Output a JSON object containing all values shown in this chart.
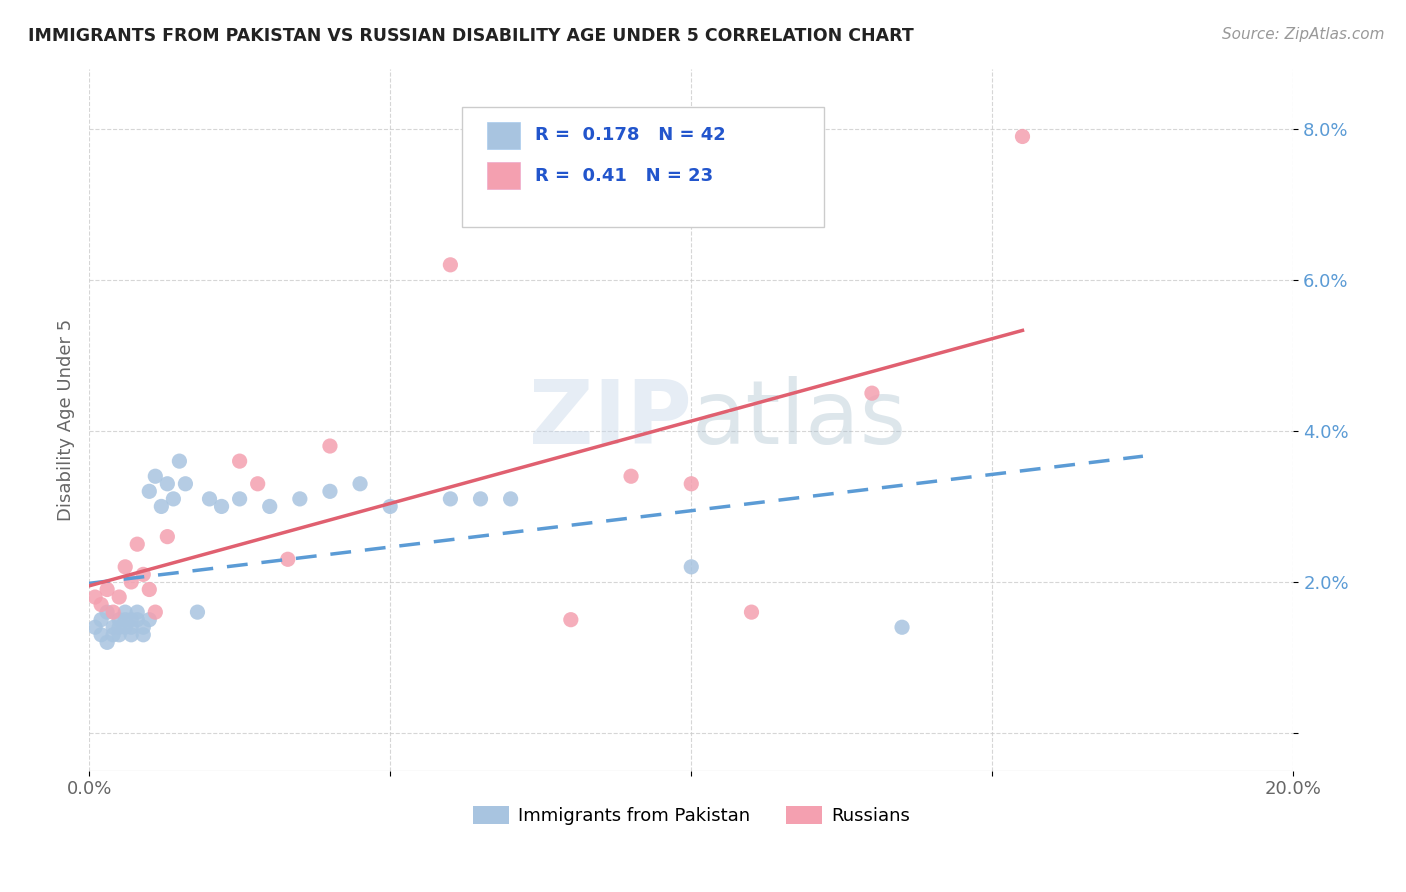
{
  "title": "IMMIGRANTS FROM PAKISTAN VS RUSSIAN DISABILITY AGE UNDER 5 CORRELATION CHART",
  "source": "Source: ZipAtlas.com",
  "ylabel": "Disability Age Under 5",
  "xlim": [
    0.0,
    0.2
  ],
  "ylim": [
    -0.005,
    0.088
  ],
  "xticks": [
    0.0,
    0.05,
    0.1,
    0.15,
    0.2
  ],
  "xticklabels": [
    "0.0%",
    "",
    "",
    "",
    "20.0%"
  ],
  "yticks": [
    0.0,
    0.02,
    0.04,
    0.06,
    0.08
  ],
  "yticklabels": [
    "",
    "2.0%",
    "4.0%",
    "6.0%",
    "8.0%"
  ],
  "pakistan_color": "#a8c4e0",
  "russian_color": "#f4a0b0",
  "R_pakistan": 0.178,
  "N_pakistan": 42,
  "R_russian": 0.41,
  "N_russian": 23,
  "legend_label_pakistan": "Immigrants from Pakistan",
  "legend_label_russian": "Russians",
  "pakistan_x": [
    0.001,
    0.002,
    0.002,
    0.003,
    0.003,
    0.004,
    0.004,
    0.005,
    0.005,
    0.005,
    0.006,
    0.006,
    0.006,
    0.007,
    0.007,
    0.007,
    0.008,
    0.008,
    0.009,
    0.009,
    0.01,
    0.01,
    0.011,
    0.012,
    0.013,
    0.014,
    0.015,
    0.016,
    0.018,
    0.02,
    0.022,
    0.025,
    0.03,
    0.035,
    0.04,
    0.045,
    0.05,
    0.06,
    0.065,
    0.07,
    0.1,
    0.135
  ],
  "pakistan_y": [
    0.014,
    0.013,
    0.015,
    0.012,
    0.016,
    0.014,
    0.013,
    0.015,
    0.014,
    0.013,
    0.015,
    0.014,
    0.016,
    0.013,
    0.015,
    0.014,
    0.016,
    0.015,
    0.014,
    0.013,
    0.032,
    0.015,
    0.034,
    0.03,
    0.033,
    0.031,
    0.036,
    0.033,
    0.016,
    0.031,
    0.03,
    0.031,
    0.03,
    0.031,
    0.032,
    0.033,
    0.03,
    0.031,
    0.031,
    0.031,
    0.022,
    0.014
  ],
  "russian_x": [
    0.001,
    0.002,
    0.003,
    0.004,
    0.005,
    0.006,
    0.007,
    0.008,
    0.009,
    0.01,
    0.011,
    0.013,
    0.025,
    0.028,
    0.033,
    0.04,
    0.06,
    0.08,
    0.09,
    0.1,
    0.11,
    0.13,
    0.155
  ],
  "russian_y": [
    0.018,
    0.017,
    0.019,
    0.016,
    0.018,
    0.022,
    0.02,
    0.025,
    0.021,
    0.019,
    0.016,
    0.026,
    0.036,
    0.033,
    0.023,
    0.038,
    0.062,
    0.015,
    0.034,
    0.033,
    0.016,
    0.045,
    0.079
  ],
  "pak_line_x0": 0.0,
  "pak_line_x1": 0.175,
  "pak_line_y0": 0.015,
  "pak_line_y1": 0.04,
  "rus_line_x0": 0.0,
  "rus_line_x1": 0.155,
  "rus_line_y0": 0.018,
  "rus_line_y1": 0.055
}
